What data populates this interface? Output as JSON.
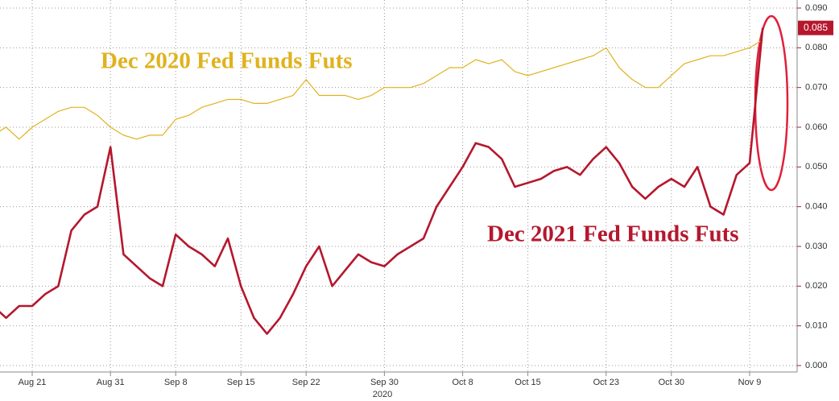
{
  "chart_data": {
    "type": "line",
    "categories": [
      null,
      null,
      null,
      "Aug 21",
      null,
      null,
      null,
      null,
      null,
      "Aug 31",
      null,
      null,
      null,
      null,
      "Sep 8",
      null,
      null,
      null,
      null,
      "Sep 15",
      null,
      null,
      null,
      null,
      "Sep 22",
      null,
      null,
      null,
      null,
      null,
      "Sep 30",
      null,
      null,
      null,
      null,
      null,
      "Oct 8",
      null,
      null,
      null,
      null,
      "Oct 15",
      null,
      null,
      null,
      null,
      null,
      "Oct 23",
      null,
      null,
      null,
      null,
      "Oct 30",
      null,
      null,
      null,
      null,
      null,
      "Nov 9",
      null
    ],
    "xlabel": "2020",
    "series": [
      {
        "name": "Dec 2020 Fed Funds Futs",
        "color": "#e0b21e",
        "values": [
          0.058,
          0.06,
          0.057,
          0.06,
          0.062,
          0.064,
          0.065,
          0.065,
          0.063,
          0.06,
          0.058,
          0.057,
          0.058,
          0.058,
          0.062,
          0.063,
          0.065,
          0.066,
          0.067,
          0.067,
          0.066,
          0.066,
          0.067,
          0.068,
          0.072,
          0.068,
          0.068,
          0.068,
          0.067,
          0.068,
          0.07,
          0.07,
          0.07,
          0.071,
          0.073,
          0.075,
          0.075,
          0.077,
          0.076,
          0.077,
          0.074,
          0.073,
          0.074,
          0.075,
          0.076,
          0.077,
          0.078,
          0.08,
          0.075,
          0.072,
          0.07,
          0.07,
          0.073,
          0.076,
          0.077,
          0.078,
          0.078,
          0.079,
          0.08,
          0.082
        ]
      },
      {
        "name": "Dec 2021 Fed Funds Futs",
        "color": "#b5172d",
        "values": [
          0.015,
          0.012,
          0.015,
          0.015,
          0.018,
          0.02,
          0.034,
          0.038,
          0.04,
          0.055,
          0.028,
          0.025,
          0.022,
          0.02,
          0.033,
          0.03,
          0.028,
          0.025,
          0.032,
          0.02,
          0.012,
          0.008,
          0.012,
          0.018,
          0.025,
          0.03,
          0.02,
          0.024,
          0.028,
          0.026,
          0.025,
          0.028,
          0.03,
          0.032,
          0.04,
          0.045,
          0.05,
          0.056,
          0.055,
          0.052,
          0.045,
          0.046,
          0.047,
          0.049,
          0.05,
          0.048,
          0.052,
          0.055,
          0.051,
          0.045,
          0.042,
          0.045,
          0.047,
          0.045,
          0.05,
          0.04,
          0.038,
          0.048,
          0.051,
          0.085
        ]
      }
    ],
    "ylim": [
      0,
      0.09
    ],
    "yticks": [
      {
        "value": 0,
        "label": "0.000"
      },
      {
        "value": 0.01,
        "label": "0.010"
      },
      {
        "value": 0.02,
        "label": "0.020"
      },
      {
        "value": 0.03,
        "label": "0.030"
      },
      {
        "value": 0.04,
        "label": "0.040"
      },
      {
        "value": 0.05,
        "label": "0.050"
      },
      {
        "value": 0.06,
        "label": "0.060"
      },
      {
        "value": 0.07,
        "label": "0.070"
      },
      {
        "value": 0.08,
        "label": "0.080"
      },
      {
        "value": 0.09,
        "label": "0.090"
      }
    ],
    "grid": true
  }
}
